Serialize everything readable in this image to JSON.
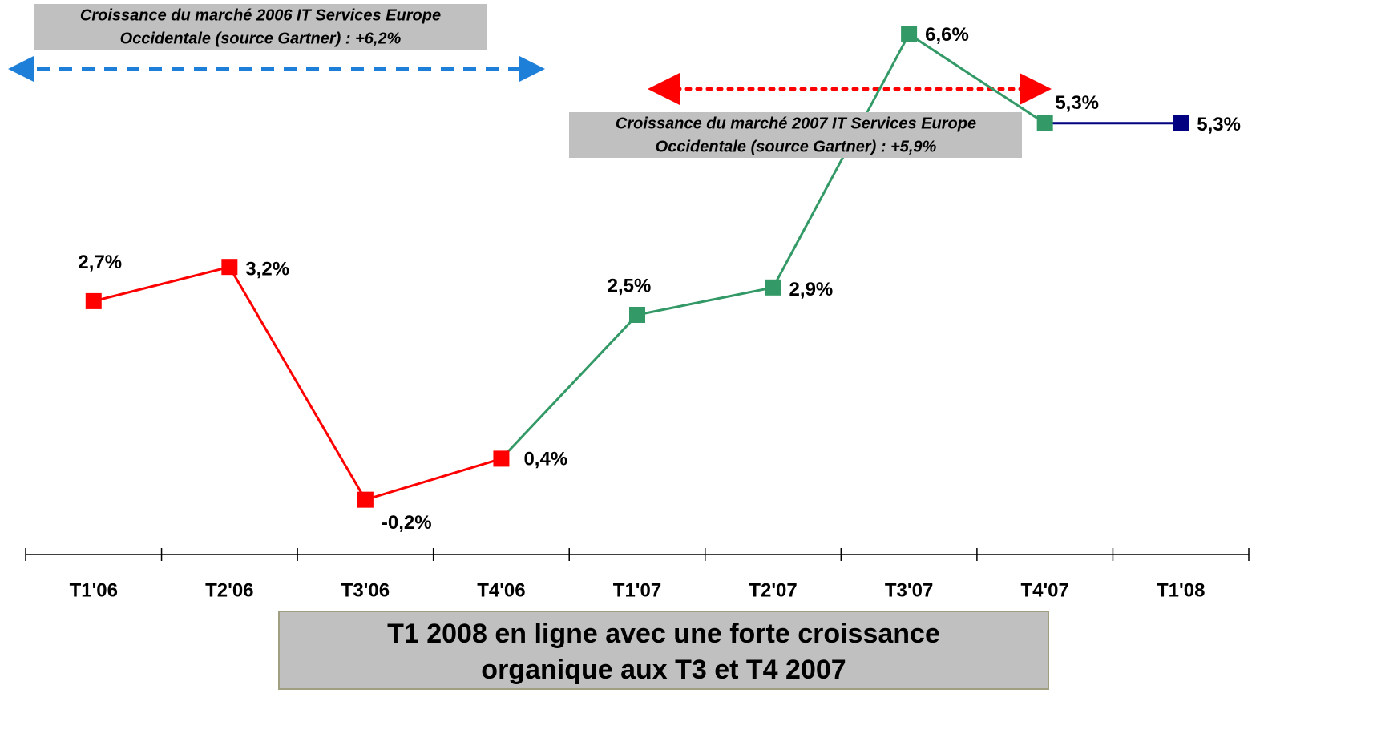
{
  "chart_data": {
    "type": "line",
    "categories": [
      "T1'06",
      "T2'06",
      "T3'06",
      "T4'06",
      "T1'07",
      "T2'07",
      "T3'07",
      "T4'07",
      "T1'08"
    ],
    "series": [
      {
        "color": "#ff0000",
        "values": [
          2.7,
          3.2,
          -0.2,
          0.4,
          null,
          null,
          null,
          null,
          null
        ],
        "value_labels": [
          "2,7%",
          "3,2%",
          "-0,2%",
          "0,4%",
          null,
          null,
          null,
          null,
          null
        ]
      },
      {
        "color": "#339966",
        "values": [
          null,
          null,
          null,
          0.4,
          2.5,
          2.9,
          6.6,
          5.3,
          null
        ],
        "value_labels": [
          null,
          null,
          null,
          null,
          "2,5%",
          "2,9%",
          "6,6%",
          "5,3%",
          null
        ]
      },
      {
        "color": "#000080",
        "values": [
          null,
          null,
          null,
          null,
          null,
          null,
          null,
          5.3,
          5.3
        ],
        "value_labels": [
          null,
          null,
          null,
          null,
          null,
          null,
          null,
          null,
          "5,3%"
        ]
      }
    ],
    "ylim": [
      -1,
      7.1
    ],
    "annotations": [
      [
        "Croissance du marché 2006 IT Services Europe",
        "Occidentale (source Gartner) : +6,2%"
      ],
      [
        "Croissance du marché 2007 IT Services Europe",
        "Occidentale (source Gartner) : +5,9%"
      ]
    ],
    "footer": [
      "T1 2008 en ligne avec une forte croissance",
      "organique aux T3 et T4 2007"
    ]
  }
}
